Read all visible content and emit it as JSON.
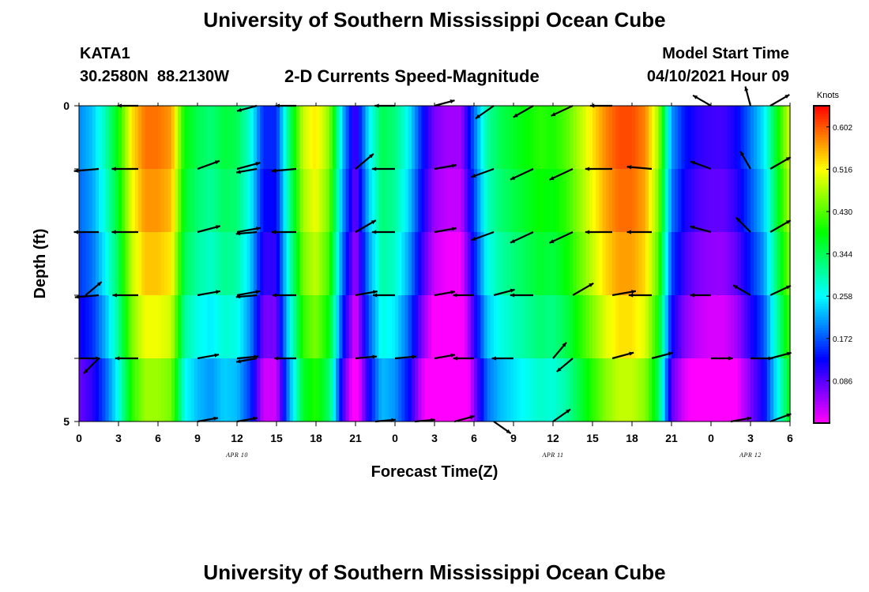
{
  "page": {
    "title_top": "University of Southern Mississippi Ocean Cube",
    "title_bottom": "University of Southern Mississippi Ocean Cube",
    "station_id": "KATA1",
    "station_coords": "30.2580N  88.2130W",
    "chart_title": "2-D Currents Speed-Magnitude",
    "model_label": "Model Start Time",
    "model_time": "04/10/2021 Hour 09"
  },
  "chart_data": {
    "type": "heatmap",
    "title": "2-D Currents Speed-Magnitude",
    "xlabel": "Forecast Time(Z)",
    "ylabel": "Depth (ft)",
    "x_range_hours": [
      0,
      54
    ],
    "y_range": [
      0,
      5
    ],
    "y_ticks": [
      "0",
      "5"
    ],
    "x_ticks": [
      "0",
      "3",
      "6",
      "9",
      "12",
      "15",
      "18",
      "21",
      "0",
      "3",
      "6",
      "9",
      "12",
      "15",
      "18",
      "21",
      "0",
      "3",
      "6"
    ],
    "date_labels": [
      {
        "text": "APR 10",
        "hour": 12
      },
      {
        "text": "APR 11",
        "hour": 36
      },
      {
        "text": "APR 12",
        "hour": 51
      }
    ],
    "colorbar": {
      "label": "Knots",
      "min": 0.0,
      "max": 0.645,
      "ticks": [
        "0.602",
        "0.516",
        "0.430",
        "0.344",
        "0.258",
        "0.172",
        "0.086"
      ],
      "tick_values": [
        0.602,
        0.516,
        0.43,
        0.344,
        0.258,
        0.172,
        0.086
      ]
    },
    "speed_profile_hours": [
      0,
      1,
      2,
      3,
      4,
      5,
      6,
      7,
      8,
      9,
      10,
      11,
      12,
      13,
      14,
      15,
      16,
      17,
      18,
      19,
      20,
      21,
      22,
      23,
      24,
      25,
      26,
      27,
      28,
      29,
      30,
      31,
      32,
      33,
      34,
      35,
      36,
      37,
      38,
      39,
      40,
      41,
      42,
      43,
      44,
      45,
      46,
      47,
      48,
      49,
      50,
      51,
      52,
      53,
      54
    ],
    "speed_profile_knots": [
      0.19,
      0.22,
      0.29,
      0.38,
      0.52,
      0.58,
      0.58,
      0.56,
      0.38,
      0.34,
      0.32,
      0.35,
      0.34,
      0.27,
      0.14,
      0.14,
      0.33,
      0.48,
      0.52,
      0.45,
      0.22,
      0.08,
      0.24,
      0.34,
      0.32,
      0.25,
      0.14,
      0.06,
      0.04,
      0.04,
      0.17,
      0.3,
      0.34,
      0.36,
      0.38,
      0.4,
      0.39,
      0.42,
      0.47,
      0.52,
      0.57,
      0.6,
      0.6,
      0.57,
      0.46,
      0.2,
      0.13,
      0.1,
      0.09,
      0.09,
      0.12,
      0.18,
      0.24,
      0.37,
      0.49
    ],
    "depth_bands": [
      0,
      1,
      2,
      3,
      4,
      5
    ],
    "depth_band_offsets_knots": [
      0.015,
      0.0,
      -0.02,
      -0.05,
      -0.09,
      -0.14
    ],
    "vector_hours": [
      0,
      1.5,
      3,
      4.5,
      6,
      7.5,
      9,
      10.5,
      12,
      13.5,
      15,
      16.5,
      18,
      19.5,
      21,
      22.5,
      24,
      25.5,
      27,
      28.5,
      30,
      31.5,
      33,
      34.5,
      36,
      37.5,
      39,
      40.5,
      42,
      43.5,
      45,
      46.5,
      48,
      49.5,
      51,
      52.5,
      54
    ],
    "vector_depths": [
      0,
      1,
      2,
      3,
      4,
      5
    ],
    "vectors": [
      {
        "hour": 1.5,
        "depth": 1,
        "dir_deg": 185,
        "speed": 0.48
      },
      {
        "hour": 4.5,
        "depth": 1,
        "dir_deg": 180,
        "speed": 0.56
      },
      {
        "hour": 9.0,
        "depth": 1,
        "dir_deg": 20,
        "speed": 0.42
      },
      {
        "hour": 12.0,
        "depth": 1,
        "dir_deg": 15,
        "speed": 0.44
      },
      {
        "hour": 13.5,
        "depth": 1,
        "dir_deg": 190,
        "speed": 0.3
      },
      {
        "hour": 16.5,
        "depth": 1,
        "dir_deg": 185,
        "speed": 0.48
      },
      {
        "hour": 21.0,
        "depth": 1,
        "dir_deg": 40,
        "speed": 0.42
      },
      {
        "hour": 24.0,
        "depth": 1,
        "dir_deg": 180,
        "speed": 0.4
      },
      {
        "hour": 27.0,
        "depth": 1,
        "dir_deg": 10,
        "speed": 0.36
      },
      {
        "hour": 31.5,
        "depth": 1,
        "dir_deg": 200,
        "speed": 0.44
      },
      {
        "hour": 34.5,
        "depth": 1,
        "dir_deg": 205,
        "speed": 0.5
      },
      {
        "hour": 37.5,
        "depth": 1,
        "dir_deg": 205,
        "speed": 0.52
      },
      {
        "hour": 40.5,
        "depth": 1,
        "dir_deg": 180,
        "speed": 0.58
      },
      {
        "hour": 43.5,
        "depth": 1,
        "dir_deg": 175,
        "speed": 0.48
      },
      {
        "hour": 48.0,
        "depth": 1,
        "dir_deg": 160,
        "speed": 0.34
      },
      {
        "hour": 51.0,
        "depth": 1,
        "dir_deg": 120,
        "speed": 0.28
      },
      {
        "hour": 52.5,
        "depth": 1,
        "dir_deg": 30,
        "speed": 0.42
      },
      {
        "hour": 1.5,
        "depth": 2,
        "dir_deg": 180,
        "speed": 0.48
      },
      {
        "hour": 4.5,
        "depth": 2,
        "dir_deg": 180,
        "speed": 0.56
      },
      {
        "hour": 9.0,
        "depth": 2,
        "dir_deg": 15,
        "speed": 0.42
      },
      {
        "hour": 12.0,
        "depth": 2,
        "dir_deg": 10,
        "speed": 0.44
      },
      {
        "hour": 13.5,
        "depth": 2,
        "dir_deg": 185,
        "speed": 0.3
      },
      {
        "hour": 16.5,
        "depth": 2,
        "dir_deg": 180,
        "speed": 0.48
      },
      {
        "hour": 21.0,
        "depth": 2,
        "dir_deg": 30,
        "speed": 0.42
      },
      {
        "hour": 24.0,
        "depth": 2,
        "dir_deg": 180,
        "speed": 0.4
      },
      {
        "hour": 27.0,
        "depth": 2,
        "dir_deg": 10,
        "speed": 0.36
      },
      {
        "hour": 31.5,
        "depth": 2,
        "dir_deg": 200,
        "speed": 0.44
      },
      {
        "hour": 34.5,
        "depth": 2,
        "dir_deg": 205,
        "speed": 0.5
      },
      {
        "hour": 37.5,
        "depth": 2,
        "dir_deg": 205,
        "speed": 0.52
      },
      {
        "hour": 40.5,
        "depth": 2,
        "dir_deg": 180,
        "speed": 0.58
      },
      {
        "hour": 43.5,
        "depth": 2,
        "dir_deg": 180,
        "speed": 0.48
      },
      {
        "hour": 48.0,
        "depth": 2,
        "dir_deg": 165,
        "speed": 0.34
      },
      {
        "hour": 51.0,
        "depth": 2,
        "dir_deg": 135,
        "speed": 0.28
      },
      {
        "hour": 52.5,
        "depth": 2,
        "dir_deg": 30,
        "speed": 0.42
      },
      {
        "hour": 0.5,
        "depth": 3,
        "dir_deg": 40,
        "speed": 0.3
      },
      {
        "hour": 1.5,
        "depth": 3,
        "dir_deg": 185,
        "speed": 0.44
      },
      {
        "hour": 4.5,
        "depth": 3,
        "dir_deg": 180,
        "speed": 0.52
      },
      {
        "hour": 9.0,
        "depth": 3,
        "dir_deg": 10,
        "speed": 0.4
      },
      {
        "hour": 12.0,
        "depth": 3,
        "dir_deg": 10,
        "speed": 0.42
      },
      {
        "hour": 13.5,
        "depth": 3,
        "dir_deg": 185,
        "speed": 0.3
      },
      {
        "hour": 16.5,
        "depth": 3,
        "dir_deg": 180,
        "speed": 0.44
      },
      {
        "hour": 21.0,
        "depth": 3,
        "dir_deg": 10,
        "speed": 0.36
      },
      {
        "hour": 24.0,
        "depth": 3,
        "dir_deg": 180,
        "speed": 0.36
      },
      {
        "hour": 27.0,
        "depth": 3,
        "dir_deg": 10,
        "speed": 0.3
      },
      {
        "hour": 30.0,
        "depth": 3,
        "dir_deg": 180,
        "speed": 0.32
      },
      {
        "hour": 31.5,
        "depth": 3,
        "dir_deg": 15,
        "speed": 0.34
      },
      {
        "hour": 34.5,
        "depth": 3,
        "dir_deg": 180,
        "speed": 0.4
      },
      {
        "hour": 37.5,
        "depth": 3,
        "dir_deg": 30,
        "speed": 0.44
      },
      {
        "hour": 40.5,
        "depth": 3,
        "dir_deg": 10,
        "speed": 0.44
      },
      {
        "hour": 43.5,
        "depth": 3,
        "dir_deg": 180,
        "speed": 0.4
      },
      {
        "hour": 48.0,
        "depth": 3,
        "dir_deg": 180,
        "speed": 0.3
      },
      {
        "hour": 51.0,
        "depth": 3,
        "dir_deg": 150,
        "speed": 0.26
      },
      {
        "hour": 52.5,
        "depth": 3,
        "dir_deg": 25,
        "speed": 0.38
      },
      {
        "hour": 0.0,
        "depth": 4,
        "dir_deg": 0,
        "speed": 0.3
      },
      {
        "hour": 1.5,
        "depth": 4,
        "dir_deg": 225,
        "speed": 0.32
      },
      {
        "hour": 4.5,
        "depth": 4,
        "dir_deg": 180,
        "speed": 0.4
      },
      {
        "hour": 9.0,
        "depth": 4,
        "dir_deg": 10,
        "speed": 0.34
      },
      {
        "hour": 12.0,
        "depth": 4,
        "dir_deg": 5,
        "speed": 0.32
      },
      {
        "hour": 13.5,
        "depth": 4,
        "dir_deg": 190,
        "speed": 0.3
      },
      {
        "hour": 16.5,
        "depth": 4,
        "dir_deg": 180,
        "speed": 0.36
      },
      {
        "hour": 21.0,
        "depth": 4,
        "dir_deg": 5,
        "speed": 0.32
      },
      {
        "hour": 24.0,
        "depth": 4,
        "dir_deg": 5,
        "speed": 0.32
      },
      {
        "hour": 27.0,
        "depth": 4,
        "dir_deg": 10,
        "speed": 0.3
      },
      {
        "hour": 30.0,
        "depth": 4,
        "dir_deg": 180,
        "speed": 0.3
      },
      {
        "hour": 33.0,
        "depth": 4,
        "dir_deg": 180,
        "speed": 0.34
      },
      {
        "hour": 36.0,
        "depth": 4,
        "dir_deg": 50,
        "speed": 0.3
      },
      {
        "hour": 37.5,
        "depth": 4,
        "dir_deg": 220,
        "speed": 0.3
      },
      {
        "hour": 40.5,
        "depth": 4,
        "dir_deg": 15,
        "speed": 0.36
      },
      {
        "hour": 43.5,
        "depth": 4,
        "dir_deg": 15,
        "speed": 0.34
      },
      {
        "hour": 48.0,
        "depth": 4,
        "dir_deg": 0,
        "speed": 0.34
      },
      {
        "hour": 51.0,
        "depth": 4,
        "dir_deg": 0,
        "speed": 0.36
      },
      {
        "hour": 52.5,
        "depth": 4,
        "dir_deg": 15,
        "speed": 0.34
      },
      {
        "hour": 9.0,
        "depth": 5,
        "dir_deg": 10,
        "speed": 0.3
      },
      {
        "hour": 12.0,
        "depth": 5,
        "dir_deg": 10,
        "speed": 0.3
      },
      {
        "hour": 22.5,
        "depth": 5,
        "dir_deg": 5,
        "speed": 0.28
      },
      {
        "hour": 25.5,
        "depth": 5,
        "dir_deg": 5,
        "speed": 0.28
      },
      {
        "hour": 28.5,
        "depth": 5,
        "dir_deg": 15,
        "speed": 0.3
      },
      {
        "hour": 31.5,
        "depth": 5,
        "dir_deg": 325,
        "speed": 0.3
      },
      {
        "hour": 36.0,
        "depth": 5,
        "dir_deg": 35,
        "speed": 0.32
      },
      {
        "hour": 49.5,
        "depth": 5,
        "dir_deg": 10,
        "speed": 0.3
      },
      {
        "hour": 52.5,
        "depth": 5,
        "dir_deg": 20,
        "speed": 0.36
      },
      {
        "hour": 4.5,
        "depth": 0,
        "dir_deg": 180,
        "speed": 0.3
      },
      {
        "hour": 13.5,
        "depth": 0,
        "dir_deg": 195,
        "speed": 0.28
      },
      {
        "hour": 16.5,
        "depth": 0,
        "dir_deg": 180,
        "speed": 0.3
      },
      {
        "hour": 24.0,
        "depth": 0,
        "dir_deg": 180,
        "speed": 0.28
      },
      {
        "hour": 27.0,
        "depth": 0,
        "dir_deg": 15,
        "speed": 0.3
      },
      {
        "hour": 31.5,
        "depth": 0,
        "dir_deg": 215,
        "speed": 0.36
      },
      {
        "hour": 34.5,
        "depth": 0,
        "dir_deg": 210,
        "speed": 0.4
      },
      {
        "hour": 37.5,
        "depth": 0,
        "dir_deg": 205,
        "speed": 0.44
      },
      {
        "hour": 40.5,
        "depth": 0,
        "dir_deg": 180,
        "speed": 0.36
      },
      {
        "hour": 48.0,
        "depth": 0,
        "dir_deg": 150,
        "speed": 0.3
      },
      {
        "hour": 51.0,
        "depth": 0,
        "dir_deg": 105,
        "speed": 0.26
      },
      {
        "hour": 52.5,
        "depth": 0,
        "dir_deg": 30,
        "speed": 0.36
      }
    ]
  },
  "colors": {
    "arrow": "#000000",
    "axis": "#000000",
    "colormap": [
      "#ff00ff",
      "#8000ff",
      "#0000ff",
      "#0080ff",
      "#00ffff",
      "#00ff80",
      "#00ff00",
      "#80ff00",
      "#ffff00",
      "#ff8000",
      "#ff0000"
    ]
  }
}
